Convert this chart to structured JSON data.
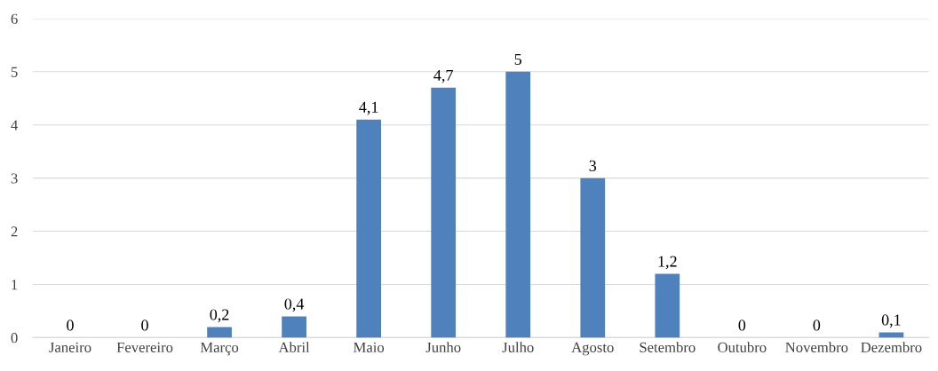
{
  "chart_data": {
    "type": "bar",
    "categories": [
      "Janeiro",
      "Fevereiro",
      "Março",
      "Abril",
      "Maio",
      "Junho",
      "Julho",
      "Agosto",
      "Setembro",
      "Outubro",
      "Novembro",
      "Dezembro"
    ],
    "values": [
      0,
      0,
      0.2,
      0.4,
      4.1,
      4.7,
      5,
      3,
      1.2,
      0,
      0,
      0.1
    ],
    "value_labels": [
      "0",
      "0",
      "0,2",
      "0,4",
      "4,1",
      "4,7",
      "5",
      "3",
      "1,2",
      "0",
      "0",
      "0,1"
    ],
    "color": "#4f81bd",
    "ylim": [
      0,
      6
    ],
    "yticks": [
      0,
      1,
      2,
      3,
      4,
      5,
      6
    ],
    "grid": "y",
    "legend": false
  }
}
